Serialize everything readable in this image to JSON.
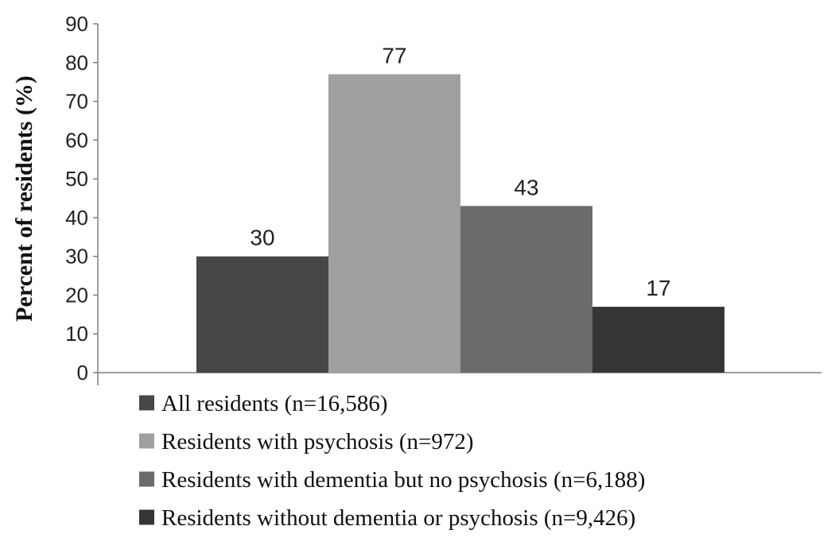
{
  "chart_data": {
    "type": "bar",
    "title": "",
    "xlabel": "",
    "ylabel": "Percent of residents (%)",
    "ylim": [
      0,
      90
    ],
    "yticks": [
      0,
      10,
      20,
      30,
      40,
      50,
      60,
      70,
      80,
      90
    ],
    "grid": false,
    "legend_position": "bottom",
    "series": [
      {
        "name": "All residents (n=16,586)",
        "value": 30,
        "color": "#474747"
      },
      {
        "name": "Residents with psychosis (n=972)",
        "value": 77,
        "color": "#a0a0a0"
      },
      {
        "name": "Residents with dementia but no psychosis (n=6,188)",
        "value": 43,
        "color": "#6b6b6b"
      },
      {
        "name": "Residents without dementia or psychosis (n=9,426)",
        "value": 17,
        "color": "#353535"
      }
    ]
  }
}
